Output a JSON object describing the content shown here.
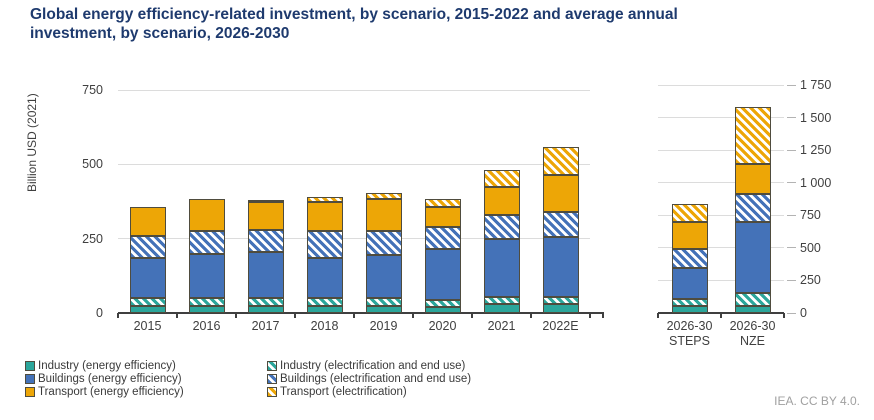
{
  "title": "Global energy efficiency-related investment, by scenario, 2015-2022 and average annual investment, by scenario, 2026-2030",
  "ylabel": "Billion USD (2021)",
  "footer": "IEA. CC BY 4.0.",
  "colors": {
    "industry": "#2ba69b",
    "buildings": "#4472b8",
    "transport": "#eda606",
    "title_text": "#1e3a6e",
    "axis_text": "#404040",
    "gridline": "#dcdcdc",
    "segment_border": "#4f4c3e",
    "footer_text": "#a0a0a0"
  },
  "legend": {
    "columns": [
      [
        {
          "label": "Industry (energy efficiency)",
          "style": "industry-solid"
        },
        {
          "label": "Buildings (energy efficiency)",
          "style": "buildings-solid"
        },
        {
          "label": "Transport (energy efficiency)",
          "style": "transport-solid"
        }
      ],
      [
        {
          "label": "Industry (electrification and end use)",
          "style": "industry-hatch"
        },
        {
          "label": "Buildings (electrification and end use)",
          "style": "buildings-hatch"
        },
        {
          "label": "Transport (electrification)",
          "style": "transport-hatch"
        }
      ]
    ]
  },
  "chart_data": [
    {
      "type": "bar",
      "stacked": true,
      "title": "Historical investment 2015-2022",
      "ylabel": "Billion USD (2021)",
      "categories": [
        "2015",
        "2016",
        "2017",
        "2018",
        "2019",
        "2020",
        "2021",
        "2022E"
      ],
      "series": [
        {
          "name": "Industry (energy efficiency)",
          "style": "industry-solid",
          "values": [
            25,
            25,
            25,
            25,
            25,
            20,
            30,
            30
          ]
        },
        {
          "name": "Industry (electrification and end use)",
          "style": "industry-hatch",
          "values": [
            25,
            25,
            25,
            25,
            25,
            25,
            25,
            25
          ]
        },
        {
          "name": "Buildings (energy efficiency)",
          "style": "buildings-solid",
          "values": [
            135,
            150,
            155,
            135,
            145,
            170,
            195,
            200
          ]
        },
        {
          "name": "Buildings (electrification and end use)",
          "style": "buildings-hatch",
          "values": [
            75,
            75,
            75,
            90,
            80,
            75,
            80,
            85
          ]
        },
        {
          "name": "Transport (energy efficiency)",
          "style": "transport-solid",
          "values": [
            95,
            110,
            95,
            100,
            110,
            65,
            95,
            125
          ]
        },
        {
          "name": "Transport (electrification)",
          "style": "transport-hatch",
          "values": [
            0,
            0,
            5,
            15,
            20,
            30,
            55,
            95
          ]
        }
      ],
      "ylim": [
        0,
        750
      ],
      "yticks": [
        0,
        250,
        500,
        750
      ],
      "ytick_side": "left",
      "grid": true,
      "axis_overhang": 14
    },
    {
      "type": "bar",
      "stacked": true,
      "title": "Average annual investment by scenario 2026-2030",
      "ylabel": "Billion USD (2021)",
      "categories": [
        [
          "2026-30",
          "STEPS"
        ],
        [
          "2026-30",
          "NZE"
        ]
      ],
      "series": [
        {
          "name": "Industry (energy efficiency)",
          "style": "industry-solid",
          "values": [
            55,
            55
          ]
        },
        {
          "name": "Industry (electrification and end use)",
          "style": "industry-hatch",
          "values": [
            50,
            100
          ]
        },
        {
          "name": "Buildings (energy efficiency)",
          "style": "buildings-solid",
          "values": [
            240,
            545
          ]
        },
        {
          "name": "Buildings (electrification and end use)",
          "style": "buildings-hatch",
          "values": [
            145,
            210
          ]
        },
        {
          "name": "Transport (energy efficiency)",
          "style": "transport-solid",
          "values": [
            205,
            235
          ]
        },
        {
          "name": "Transport (electrification)",
          "style": "transport-hatch",
          "values": [
            140,
            435
          ]
        }
      ],
      "ylim": [
        0,
        1750
      ],
      "yticks": [
        0,
        250,
        500,
        750,
        1000,
        1250,
        1500,
        1750
      ],
      "ytick_side": "right",
      "grid": true,
      "axis_overhang": 0
    }
  ]
}
